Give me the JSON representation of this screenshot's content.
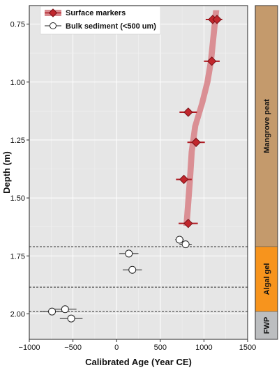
{
  "chart_data": {
    "type": "scatter",
    "xlabel": "Calibrated Age (Year CE)",
    "ylabel": "Depth (m)",
    "xlim": [
      -1000,
      1500
    ],
    "ylim": [
      2.11,
      0.67
    ],
    "y_inverted": true,
    "x_ticks": [
      "−1000",
      "−500",
      "0",
      "500",
      "1000",
      "1500"
    ],
    "x_tick_values": [
      -1000,
      -500,
      0,
      500,
      1000,
      1500
    ],
    "y_ticks": [
      "0.75",
      "1.00",
      "1.25",
      "1.50",
      "1.75",
      "2.00"
    ],
    "y_tick_values": [
      0.75,
      1.0,
      1.25,
      1.5,
      1.75,
      2.0
    ],
    "grid": true,
    "legend_position": "top-left",
    "series": [
      {
        "name": "Surface markers",
        "marker": "diamond",
        "color": "#c1272d",
        "points": [
          {
            "x": 1100,
            "y": 0.73,
            "xerr": 80
          },
          {
            "x": 1150,
            "y": 0.73,
            "xerr": 60
          },
          {
            "x": 1090,
            "y": 0.91,
            "xerr": 90
          },
          {
            "x": 820,
            "y": 1.13,
            "xerr": 100
          },
          {
            "x": 910,
            "y": 1.26,
            "xerr": 100
          },
          {
            "x": 770,
            "y": 1.42,
            "xerr": 90
          },
          {
            "x": 820,
            "y": 1.61,
            "xerr": 110
          }
        ]
      },
      {
        "name": "Bulk sediment (<500 um)",
        "marker": "open-circle",
        "color": "#ffffff",
        "points": [
          {
            "x": 720,
            "y": 1.68,
            "xerr": 50
          },
          {
            "x": 790,
            "y": 1.7,
            "xerr": 70
          },
          {
            "x": 140,
            "y": 1.74,
            "xerr": 110
          },
          {
            "x": 180,
            "y": 1.81,
            "xerr": 110
          },
          {
            "x": -590,
            "y": 1.98,
            "xerr": 130
          },
          {
            "x": -740,
            "y": 1.99,
            "xerr": 140
          },
          {
            "x": -520,
            "y": 2.02,
            "xerr": 130
          }
        ]
      }
    ],
    "age_model_band": {
      "color": "#d98a8f",
      "center": [
        {
          "x": 1140,
          "y": 0.69
        },
        {
          "x": 1110,
          "y": 0.8
        },
        {
          "x": 1080,
          "y": 0.91
        },
        {
          "x": 1040,
          "y": 1.0
        },
        {
          "x": 980,
          "y": 1.09
        },
        {
          "x": 900,
          "y": 1.19
        },
        {
          "x": 860,
          "y": 1.3
        },
        {
          "x": 840,
          "y": 1.42
        },
        {
          "x": 820,
          "y": 1.52
        },
        {
          "x": 800,
          "y": 1.62
        }
      ],
      "halfwidth": 35
    },
    "unit_boundaries": [
      1.71,
      1.885,
      1.99
    ],
    "units": [
      {
        "label": "Mangrove peat",
        "top": 0.67,
        "bottom": 1.71,
        "color": "#c49a6c"
      },
      {
        "label": "Algal gel",
        "top": 1.71,
        "bottom": 1.99,
        "color": "#f7941d"
      },
      {
        "label": "FWP",
        "top": 1.99,
        "bottom": 2.11,
        "color": "#bcbec0"
      }
    ]
  }
}
